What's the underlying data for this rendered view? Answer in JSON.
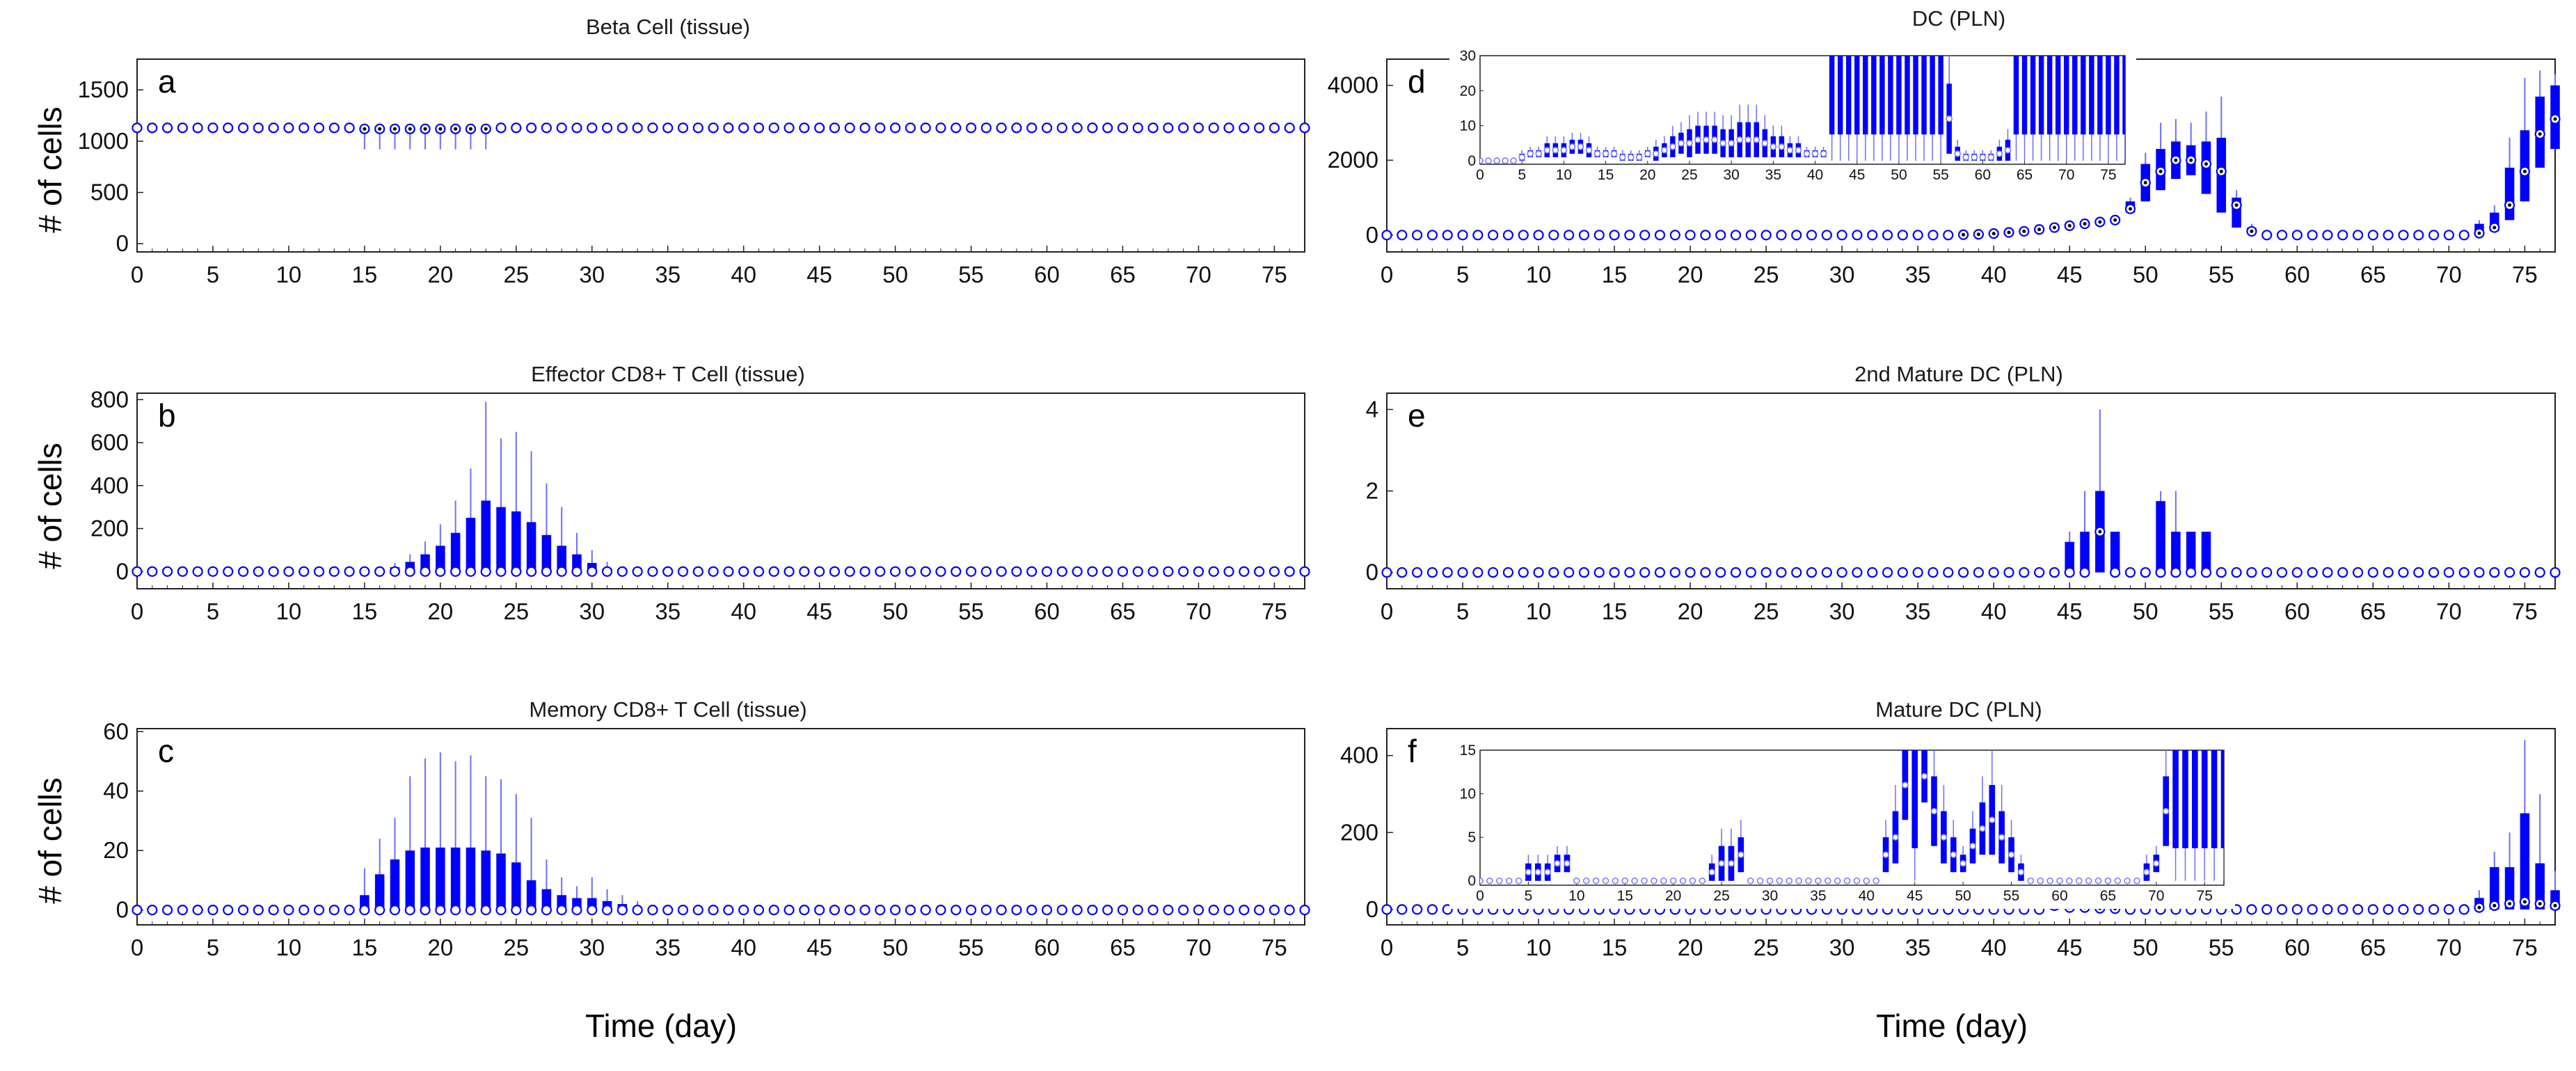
{
  "figure": {
    "y_axis_label": "# of cells",
    "x_axis_label": "Time (day)",
    "colors": {
      "box": "#0000ff",
      "whisker": "#6d6dff",
      "median_ring": "#ffffff",
      "axis": "#222222"
    }
  },
  "chart_data": [
    {
      "id": "a",
      "letter": "a",
      "type": "box",
      "title": "Beta Cell (tissue)",
      "xlim": [
        0,
        77
      ],
      "ylim": [
        -80,
        1800
      ],
      "xticks": [
        0,
        5,
        10,
        15,
        20,
        25,
        30,
        35,
        40,
        45,
        50,
        55,
        60,
        65,
        70,
        75
      ],
      "yticks": [
        0,
        500,
        1000,
        1500
      ],
      "days_step": 1,
      "baseline_median": 1130,
      "groups": [
        {
          "day_from": 15,
          "day_to": 23,
          "median": 1120,
          "q1": 1090,
          "q3": 1140,
          "whisker_low": 920,
          "whisker_high": 1150
        }
      ]
    },
    {
      "id": "b",
      "letter": "b",
      "type": "box",
      "title": "Effector CD8+ T Cell (tissue)",
      "xlim": [
        0,
        77
      ],
      "ylim": [
        -80,
        830
      ],
      "xticks": [
        0,
        5,
        10,
        15,
        20,
        25,
        30,
        35,
        40,
        45,
        50,
        55,
        60,
        65,
        70,
        75
      ],
      "yticks": [
        0,
        200,
        400,
        600,
        800
      ],
      "days_step": 1,
      "baseline_median": 0,
      "days": [
        17,
        18,
        19,
        20,
        21,
        22,
        23,
        24,
        25,
        26,
        27,
        28,
        29,
        30,
        31
      ],
      "median": [
        0,
        0,
        0,
        0,
        0,
        0,
        0,
        0,
        0,
        0,
        0,
        0,
        0,
        0,
        0
      ],
      "q1": [
        0,
        0,
        0,
        0,
        0,
        0,
        0,
        0,
        0,
        0,
        0,
        0,
        0,
        0,
        0
      ],
      "q3": [
        20,
        45,
        80,
        120,
        180,
        250,
        330,
        300,
        280,
        230,
        170,
        120,
        80,
        40,
        15
      ],
      "whisker_high": [
        40,
        80,
        140,
        220,
        330,
        480,
        790,
        620,
        650,
        560,
        410,
        300,
        180,
        100,
        45
      ]
    },
    {
      "id": "c",
      "letter": "c",
      "type": "box",
      "title": "Memory CD8+ T Cell (tissue)",
      "xlim": [
        0,
        77
      ],
      "ylim": [
        -5,
        61
      ],
      "xticks": [
        0,
        5,
        10,
        15,
        20,
        25,
        30,
        35,
        40,
        45,
        50,
        55,
        60,
        65,
        70,
        75
      ],
      "yticks": [
        0,
        20,
        40,
        60
      ],
      "days_step": 1,
      "baseline_median": 0,
      "days": [
        15,
        16,
        17,
        18,
        19,
        20,
        21,
        22,
        23,
        24,
        25,
        26,
        27,
        28,
        29,
        30,
        31,
        32,
        33
      ],
      "median": [
        0,
        0,
        0,
        0,
        0,
        0,
        0,
        0,
        0,
        0,
        0,
        0,
        0,
        0,
        0,
        0,
        0,
        0,
        0
      ],
      "q1": [
        0,
        0,
        0,
        0,
        0,
        0,
        0,
        0,
        0,
        0,
        0,
        0,
        0,
        0,
        0,
        0,
        0,
        0,
        0
      ],
      "q3": [
        5,
        12,
        17,
        20,
        21,
        21,
        21,
        21,
        20,
        19,
        16,
        10,
        7,
        5,
        4,
        4,
        3,
        2,
        1
      ],
      "whisker_high": [
        14,
        24,
        31,
        45,
        51,
        53,
        50,
        52,
        45,
        44,
        39,
        31,
        17,
        11,
        8,
        11,
        7,
        5,
        3
      ]
    },
    {
      "id": "d",
      "letter": "d",
      "type": "box",
      "title": "DC (PLN)",
      "xlim": [
        0,
        77
      ],
      "ylim": [
        -450,
        4700
      ],
      "xticks": [
        0,
        5,
        10,
        15,
        20,
        25,
        30,
        35,
        40,
        45,
        50,
        55,
        60,
        65,
        70,
        75
      ],
      "yticks": [
        0,
        2000,
        4000
      ],
      "days_step": 1,
      "baseline_median": 0,
      "days": [
        38,
        39,
        40,
        41,
        42,
        43,
        44,
        45,
        46,
        47,
        48,
        49,
        50,
        51,
        52,
        53,
        54,
        55,
        56,
        57,
        72,
        73,
        74,
        75,
        76,
        77
      ],
      "median": [
        10,
        20,
        40,
        70,
        100,
        150,
        200,
        250,
        300,
        350,
        400,
        700,
        1400,
        1700,
        2000,
        2000,
        1900,
        1700,
        800,
        100,
        50,
        200,
        800,
        1700,
        2700,
        3100
      ],
      "q1": [
        5,
        10,
        20,
        40,
        70,
        100,
        150,
        200,
        250,
        300,
        350,
        600,
        900,
        1200,
        1500,
        1600,
        1100,
        600,
        200,
        50,
        20,
        100,
        400,
        900,
        1800,
        2300
      ],
      "q3": [
        15,
        30,
        50,
        90,
        130,
        180,
        240,
        290,
        340,
        400,
        450,
        900,
        1900,
        2300,
        2500,
        2400,
        2500,
        2600,
        1000,
        200,
        300,
        600,
        1800,
        2800,
        3700,
        4000
      ],
      "whisker_high": [
        20,
        40,
        60,
        110,
        150,
        210,
        280,
        330,
        380,
        450,
        500,
        1000,
        2200,
        3000,
        3100,
        3000,
        3300,
        3700,
        1200,
        300,
        400,
        800,
        2600,
        4200,
        4400,
        4300
      ],
      "inset": {
        "xlim": [
          0,
          77
        ],
        "ylim": [
          -1,
          30
        ],
        "xticks": [
          0,
          5,
          10,
          15,
          20,
          25,
          30,
          35,
          40,
          45,
          50,
          55,
          60,
          65,
          70,
          75
        ],
        "yticks": [
          0,
          10,
          20,
          30
        ],
        "series": [
          0,
          0,
          0,
          0,
          0,
          1,
          2,
          2,
          3,
          3,
          3,
          4,
          4,
          3,
          2,
          2,
          2,
          1,
          1,
          1,
          2,
          2,
          3,
          4,
          5,
          5,
          6,
          6,
          6,
          5,
          5,
          6,
          6,
          6,
          5,
          4,
          4,
          3,
          3,
          2,
          2,
          2,
          30,
          30,
          30,
          30,
          30,
          30,
          30,
          30,
          30,
          30,
          30,
          30,
          30,
          30,
          12,
          2,
          1,
          1,
          1,
          1,
          2,
          3,
          30,
          30,
          30,
          30,
          30,
          30,
          30,
          30,
          30,
          30,
          30,
          30,
          30,
          30
        ],
        "spread": [
          0,
          0,
          0,
          0,
          0,
          1,
          1,
          1,
          2,
          2,
          2,
          2,
          2,
          2,
          1,
          1,
          1,
          1,
          1,
          1,
          1,
          2,
          2,
          3,
          3,
          4,
          4,
          4,
          4,
          4,
          4,
          5,
          5,
          5,
          4,
          3,
          3,
          2,
          2,
          1,
          1,
          1,
          0,
          0,
          0,
          0,
          0,
          0,
          0,
          0,
          0,
          0,
          0,
          0,
          0,
          0,
          10,
          2,
          1,
          1,
          1,
          1,
          2,
          3,
          0,
          0,
          0,
          0,
          0,
          0,
          0,
          0,
          0,
          0,
          0,
          0,
          0,
          0
        ]
      }
    },
    {
      "id": "e",
      "letter": "e",
      "type": "box",
      "title": "2nd Mature DC (PLN)",
      "xlim": [
        0,
        77
      ],
      "ylim": [
        -0.4,
        4.4
      ],
      "xticks": [
        0,
        5,
        10,
        15,
        20,
        25,
        30,
        35,
        40,
        45,
        50,
        55,
        60,
        65,
        70,
        75
      ],
      "yticks": [
        0,
        2,
        4
      ],
      "days_step": 1,
      "baseline_median": 0,
      "days": [
        45,
        46,
        47,
        48,
        51,
        52,
        53,
        54
      ],
      "median": [
        0,
        0,
        1,
        0,
        0,
        0,
        0,
        0
      ],
      "q1": [
        0,
        0,
        0,
        0,
        0,
        0,
        0,
        0
      ],
      "q3": [
        0.75,
        1,
        2,
        1,
        1.75,
        1,
        1,
        1
      ],
      "whisker_high": [
        1,
        2,
        4,
        1,
        2,
        2,
        1,
        1
      ]
    },
    {
      "id": "f",
      "letter": "f",
      "type": "box",
      "title": "Mature DC (PLN)",
      "xlim": [
        0,
        77
      ],
      "ylim": [
        -40,
        470
      ],
      "xticks": [
        0,
        5,
        10,
        15,
        20,
        25,
        30,
        35,
        40,
        45,
        50,
        55,
        60,
        65,
        70,
        75
      ],
      "yticks": [
        0,
        200,
        400
      ],
      "days_step": 1,
      "baseline_median": 0,
      "days": [
        44,
        45,
        46,
        47,
        48,
        72,
        73,
        74,
        75,
        76,
        77
      ],
      "median": [
        10,
        5,
        5,
        3,
        2,
        5,
        10,
        15,
        20,
        15,
        10
      ],
      "q1": [
        0,
        0,
        0,
        0,
        0,
        0,
        0,
        0,
        0,
        0,
        0
      ],
      "q3": [
        15,
        10,
        10,
        5,
        3,
        30,
        110,
        110,
        250,
        120,
        50
      ],
      "whisker_high": [
        20,
        15,
        15,
        8,
        5,
        50,
        150,
        200,
        440,
        300,
        100
      ],
      "inset": {
        "xlim": [
          0,
          77
        ],
        "ylim": [
          -0.5,
          15
        ],
        "xticks": [
          0,
          5,
          10,
          15,
          20,
          25,
          30,
          35,
          40,
          45,
          50,
          55,
          60,
          65,
          70,
          75
        ],
        "yticks": [
          0,
          5,
          10,
          15
        ],
        "series": [
          0,
          0,
          0,
          0,
          0,
          1,
          1,
          1,
          2,
          2,
          0,
          0,
          0,
          0,
          0,
          0,
          0,
          0,
          0,
          0,
          0,
          0,
          0,
          0,
          1,
          2,
          2,
          3,
          0,
          0,
          0,
          0,
          0,
          0,
          0,
          0,
          0,
          0,
          0,
          0,
          0,
          0,
          3,
          5,
          11,
          15,
          12,
          8,
          5,
          3,
          2,
          4,
          6,
          7,
          5,
          3,
          1,
          0,
          0,
          0,
          0,
          0,
          0,
          0,
          0,
          0,
          0,
          0,
          0,
          1,
          2,
          8,
          15,
          15,
          15,
          15,
          15,
          15
        ],
        "spread": [
          0,
          0,
          0,
          0,
          0,
          1,
          1,
          1,
          1,
          1,
          0,
          0,
          0,
          0,
          0,
          0,
          0,
          0,
          0,
          0,
          0,
          0,
          0,
          0,
          1,
          2,
          2,
          2,
          0,
          0,
          0,
          0,
          0,
          0,
          0,
          0,
          0,
          0,
          0,
          0,
          0,
          0,
          2,
          3,
          4,
          0,
          3,
          4,
          3,
          2,
          1,
          2,
          3,
          4,
          3,
          2,
          1,
          0,
          0,
          0,
          0,
          0,
          0,
          0,
          0,
          0,
          0,
          0,
          0,
          1,
          1,
          4,
          0,
          0,
          0,
          0,
          0,
          0
        ]
      }
    }
  ]
}
